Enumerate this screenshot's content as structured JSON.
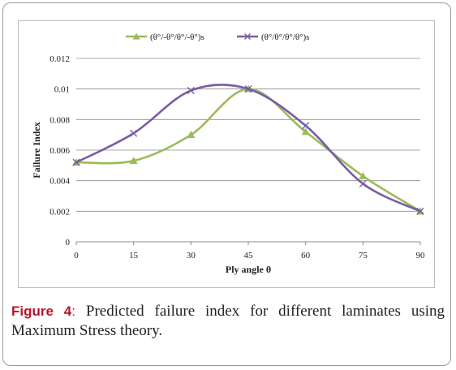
{
  "caption": {
    "label": "Figure 4",
    "separator": ":",
    "text": " Predicted failure index for different laminates using Maximum Stress theory."
  },
  "chart_data": {
    "type": "line",
    "title": "",
    "xlabel": "Ply angle θ",
    "ylabel": "Failure Index",
    "x": [
      0,
      15,
      30,
      45,
      60,
      75,
      90
    ],
    "xlim": [
      0,
      90
    ],
    "ylim": [
      0,
      0.012
    ],
    "x_ticks": [
      "0",
      "15",
      "30",
      "45",
      "60",
      "75",
      "90"
    ],
    "y_ticks": [
      "0",
      "0.002",
      "0.004",
      "0.006",
      "0.008",
      "0.01",
      "0.012"
    ],
    "grid": "horizontal",
    "legend_position": "top",
    "series": [
      {
        "name": "(θ°/-θ°/θ°/-θ°)s",
        "color": "#9bbb59",
        "marker": "triangle",
        "values": [
          0.0052,
          0.0053,
          0.007,
          0.01,
          0.0072,
          0.0043,
          0.002
        ]
      },
      {
        "name": "(θ°/θ°/θ°/θ°)s",
        "color": "#7a5ba6",
        "marker": "x",
        "values": [
          0.0052,
          0.0071,
          0.0099,
          0.01,
          0.0076,
          0.0038,
          0.002
        ]
      }
    ]
  }
}
